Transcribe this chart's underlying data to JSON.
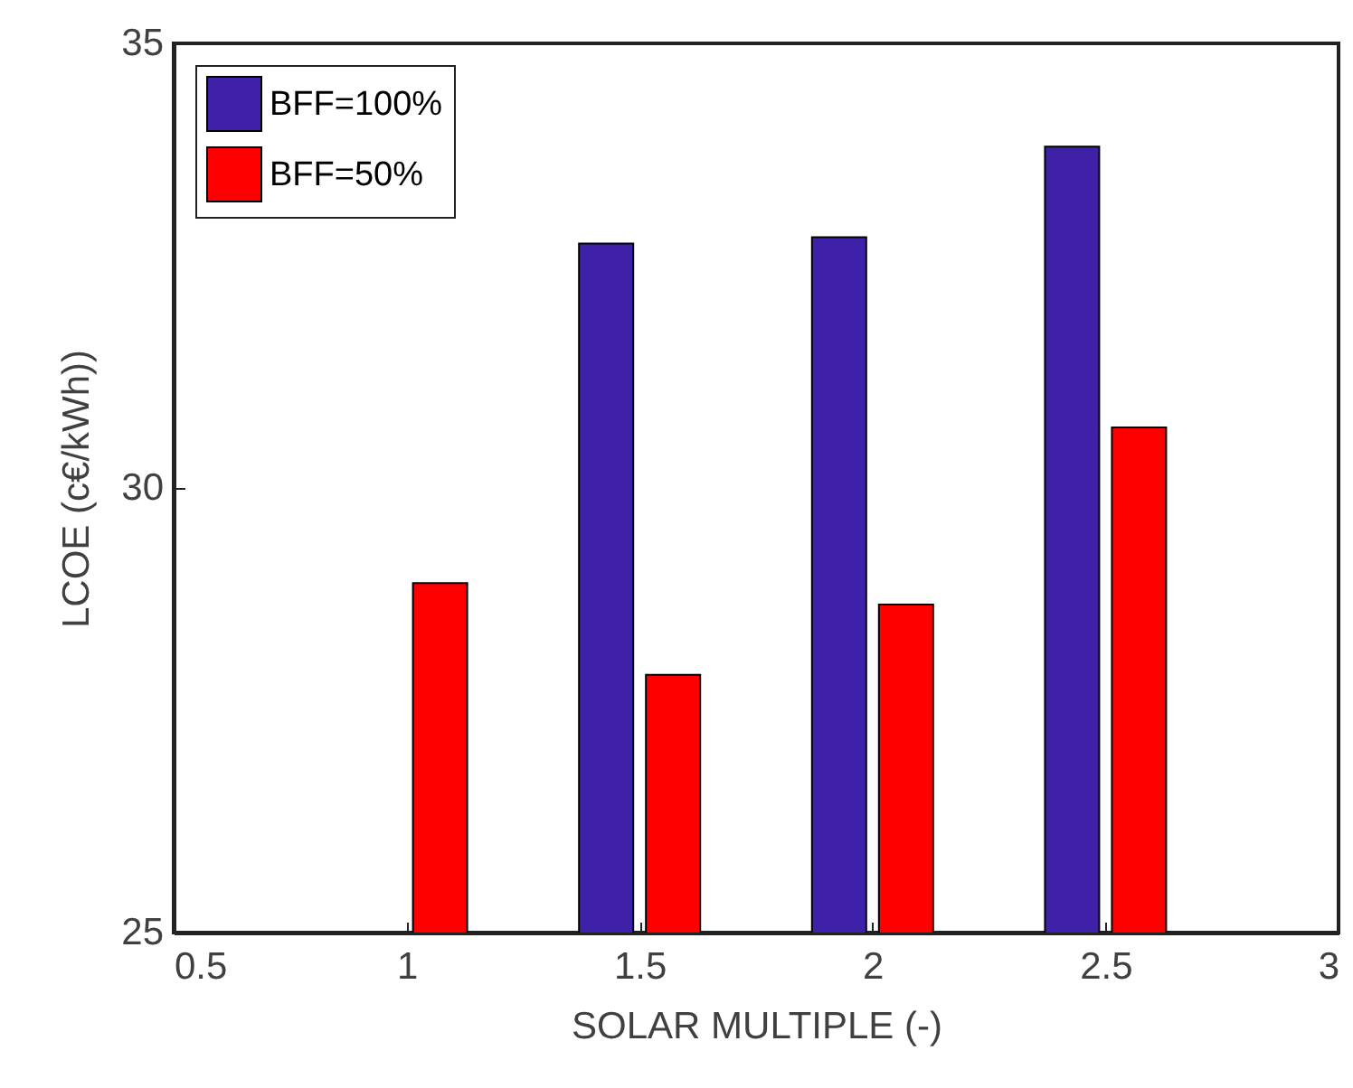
{
  "chart_data": {
    "type": "bar",
    "xlabel": "SOLAR MULTIPLE (-)",
    "ylabel": "LCOE (c€/kWh))",
    "x": [
      1,
      1.5,
      2,
      2.5
    ],
    "series": [
      {
        "name": "BFF=100%",
        "color": "#3f20a8",
        "values": [
          null,
          32.75,
          32.82,
          33.84
        ]
      },
      {
        "name": "BFF=50%",
        "color": "#ff0000",
        "values": [
          28.93,
          27.9,
          28.69,
          30.68
        ]
      }
    ],
    "xlim": [
      0.5,
      3
    ],
    "xticks": [
      0.5,
      1,
      1.5,
      2,
      2.5,
      3
    ],
    "ylim": [
      25,
      35
    ],
    "yticks": [
      25,
      30,
      35
    ],
    "grid": false,
    "legend": "top left"
  }
}
